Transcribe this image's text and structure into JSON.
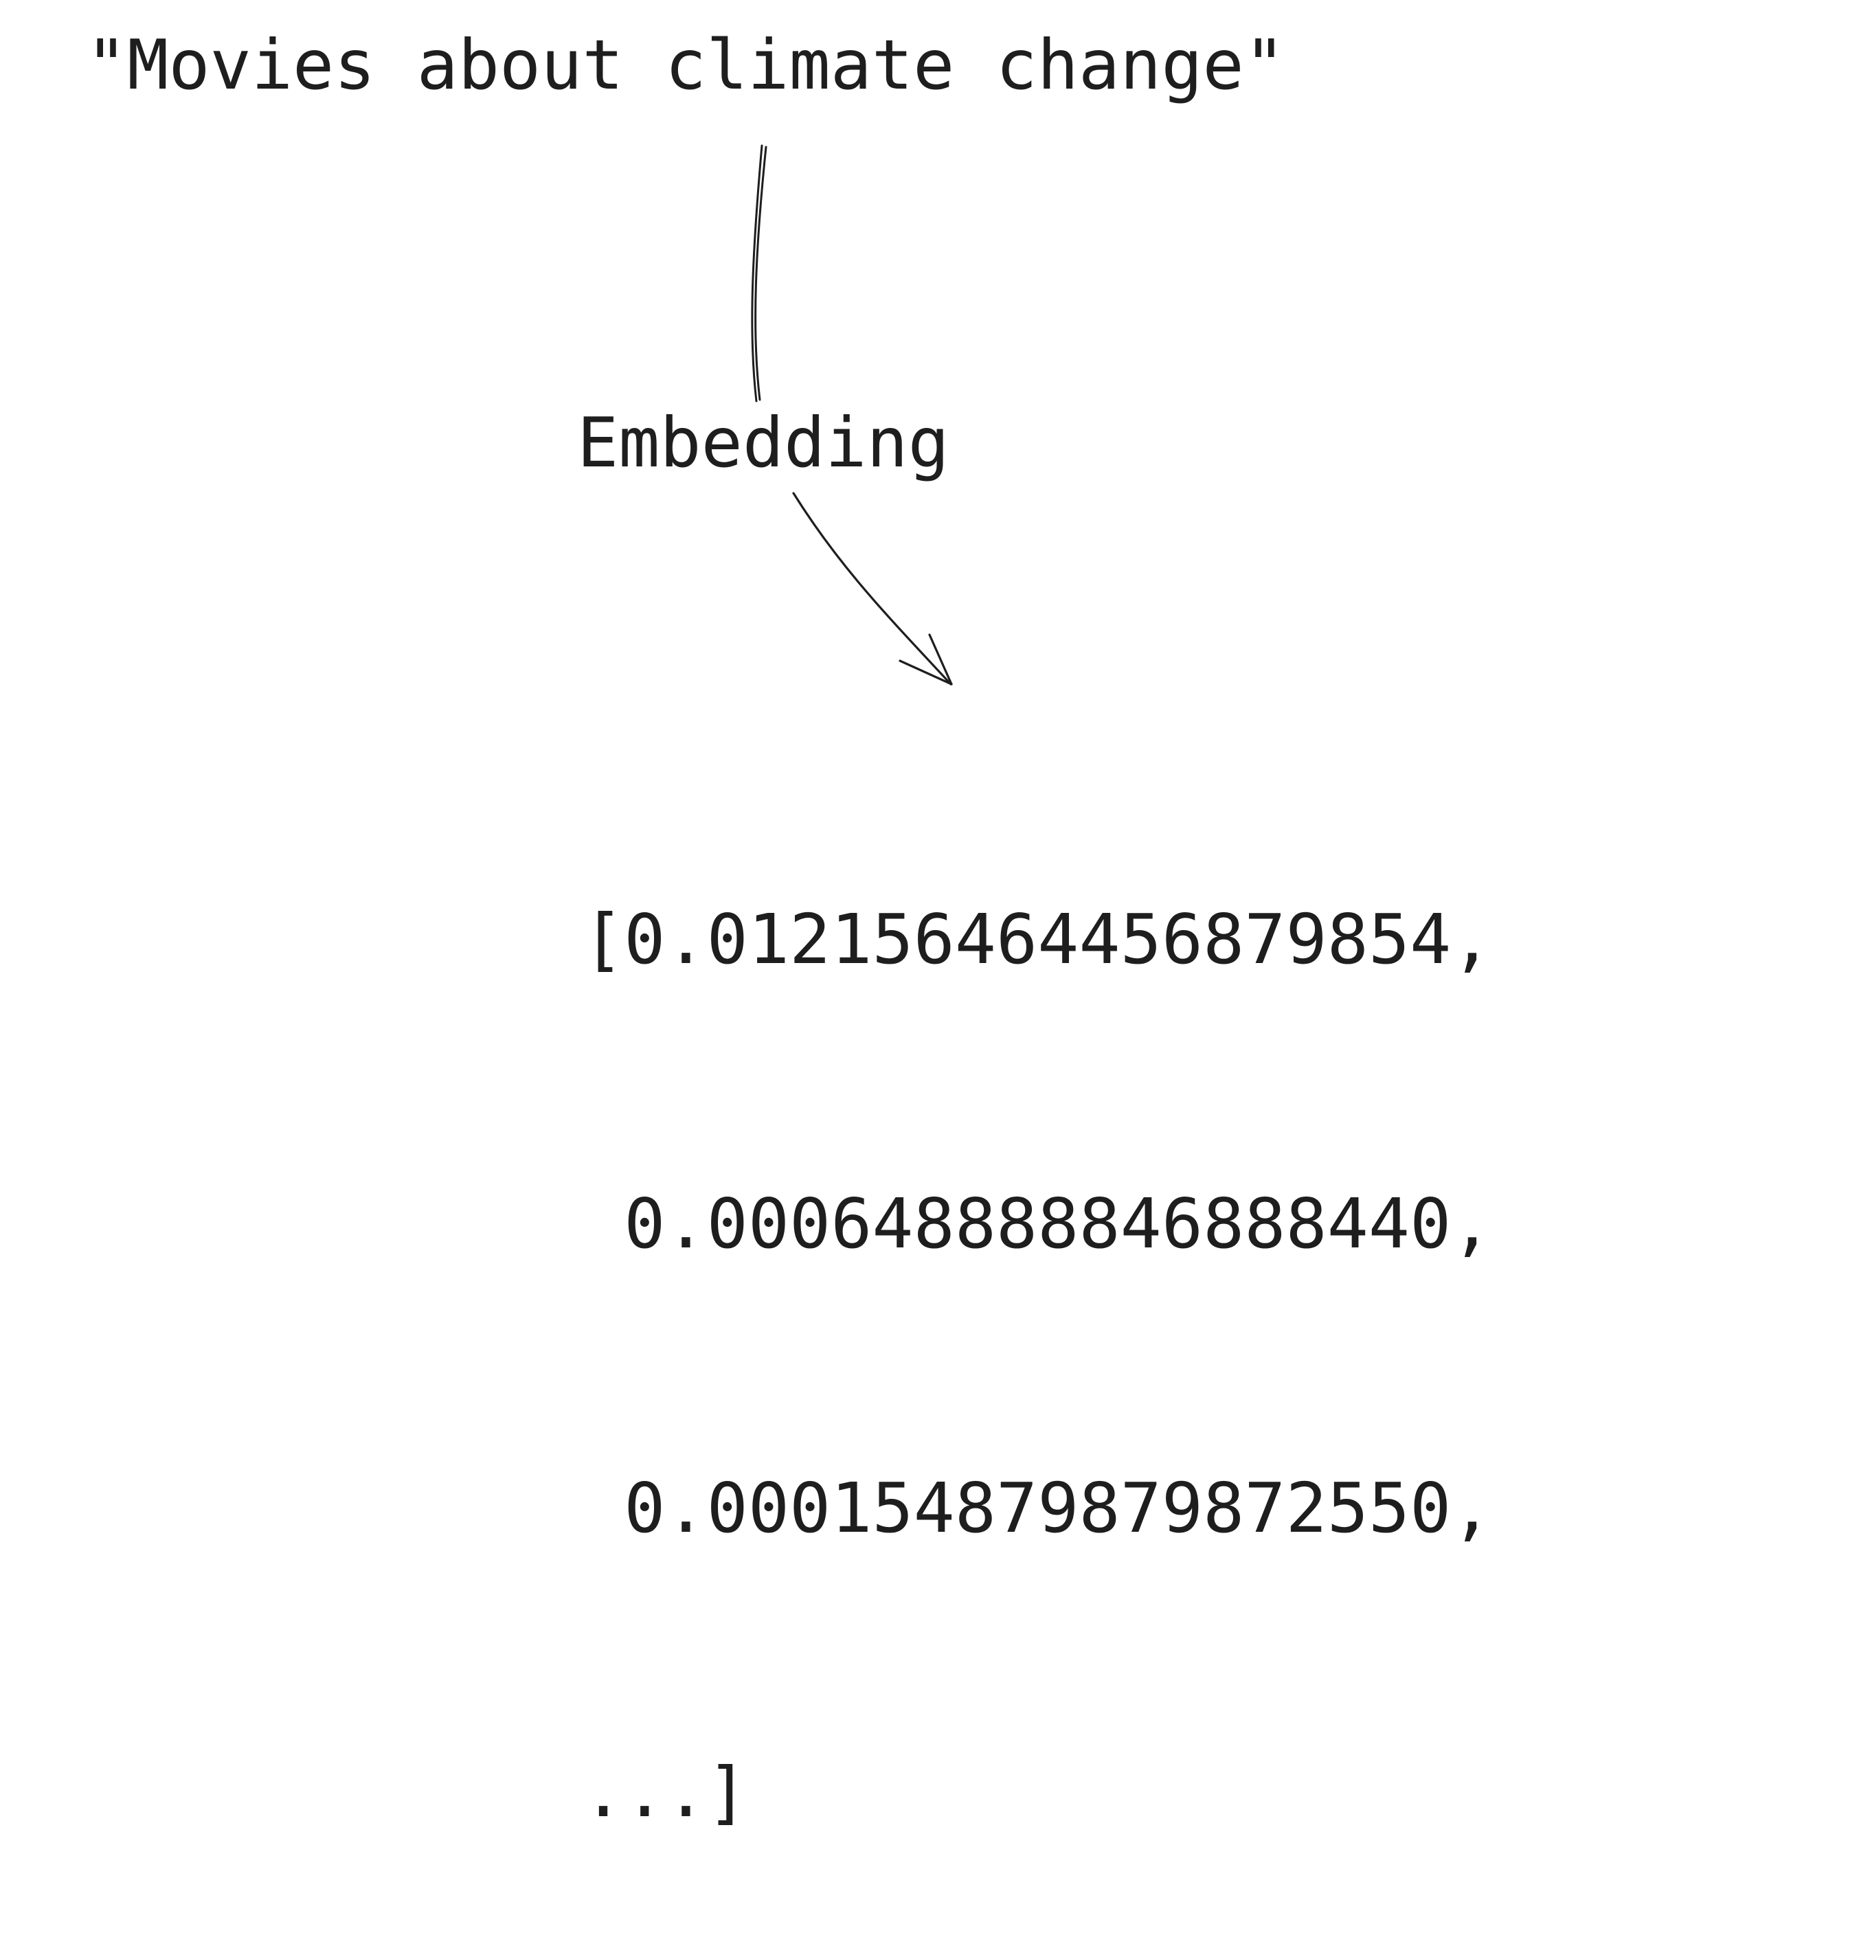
{
  "query": {
    "text": "\"Movies about climate change\""
  },
  "step": {
    "label": "Embedding"
  },
  "embedding_output": {
    "lines": [
      "[0.012156464456879854,",
      " 0.000648888846888440,",
      " 0.000154879879872550,",
      "...]"
    ]
  },
  "colors": {
    "ink": "#1e1e1e",
    "background": "#ffffff"
  }
}
